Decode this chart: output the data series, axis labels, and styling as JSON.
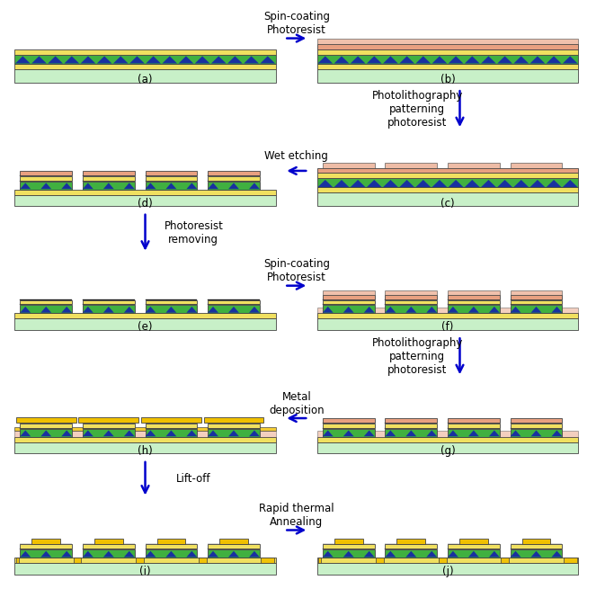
{
  "colors": {
    "photoresist": "#E8A080",
    "yellow_layer": "#F0E060",
    "green_dark": "#40B040",
    "substrate": "#C8F0C8",
    "gold_contact": "#F0C000",
    "arrow": "#0000CC",
    "bg": "#FFFFFF",
    "blue_qd": "#1830A0",
    "black_line": "#000000"
  },
  "panels": [
    "a",
    "b",
    "c",
    "d",
    "e",
    "f",
    "g",
    "h",
    "i",
    "j"
  ],
  "annotations": {
    "ab": [
      "Spin-coating",
      "Photoresist"
    ],
    "bc": [
      "Photolithography",
      "patterning",
      "photoresist"
    ],
    "dc": [
      "Wet etching"
    ],
    "de": [
      "Photoresist",
      "removing"
    ],
    "ef": [
      "Spin-coating",
      "Photoresist"
    ],
    "fg": [
      "Photolithography",
      "patterning",
      "photoresist"
    ],
    "gh": [
      "Metal",
      "deposition"
    ],
    "hi": [
      "Lift-off"
    ],
    "ij": [
      "Rapid thermal",
      "Annealing"
    ]
  }
}
